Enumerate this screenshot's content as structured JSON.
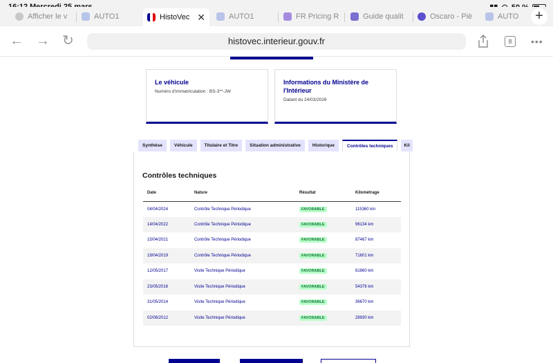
{
  "status": {
    "time": "16:12",
    "date": "Mercredi 25 mars",
    "battery": "50 %"
  },
  "browser_tabs": [
    {
      "label": "Afficher le v",
      "favicon_color": "#b0b0b0"
    },
    {
      "label": "AUTO1",
      "favicon_color": "#b0b0b0"
    },
    {
      "label": "HistoVec",
      "favicon_color": "#000091",
      "active": true
    },
    {
      "label": "AUTO1",
      "favicon_color": "#b0b0b0"
    },
    {
      "label": "FR Pricing R",
      "favicon_color": "#a58be0"
    },
    {
      "label": "Guide qualit",
      "favicon_color": "#7a6fd1"
    },
    {
      "label": "Oscaro - Piè",
      "favicon_color": "#5a4fcf"
    },
    {
      "label": "AUTO",
      "favicon_color": "#b0b0b0"
    }
  ],
  "toolbar": {
    "url": "histovec.interieur.gouv.fr",
    "tabs_count": "8"
  },
  "cards": {
    "vehicle": {
      "title": "Le véhicule",
      "text": "Numéro d'immatriculation : BS-3**-JW"
    },
    "ministry": {
      "title": "Informations du Ministère de l'Intérieur",
      "text": "Datant du 24/03/2026"
    }
  },
  "detail_tabs": [
    "Synthèse",
    "Véhicule",
    "Titulaire et Titre",
    "Situation administrative",
    "Historique",
    "Contrôles techniques",
    "Kil"
  ],
  "active_detail_tab": 5,
  "section": {
    "title": "Contrôles techniques",
    "headers": [
      "Date",
      "Nature",
      "Résultat",
      "Kilométrage"
    ],
    "rows": [
      {
        "date": "04/04/2024",
        "nature": "Contrôle Technique Périodique",
        "result": "FAVORABLE",
        "km": "115360 km"
      },
      {
        "date": "14/04/2022",
        "nature": "Contrôle Technique Périodique",
        "result": "FAVORABLE",
        "km": "96134 km"
      },
      {
        "date": "15/04/2021",
        "nature": "Contrôle Technique Périodique",
        "result": "FAVORABLE",
        "km": "87467 km"
      },
      {
        "date": "19/04/2019",
        "nature": "Contrôle Technique Périodique",
        "result": "FAVORABLE",
        "km": "71601 km"
      },
      {
        "date": "12/05/2017",
        "nature": "Visite Technique Périodique",
        "result": "FAVORABLE",
        "km": "61860 km"
      },
      {
        "date": "23/05/2016",
        "nature": "Visite Technique Périodique",
        "result": "FAVORABLE",
        "km": "54376 km"
      },
      {
        "date": "31/05/2014",
        "nature": "Visite Technique Périodique",
        "result": "FAVORABLE",
        "km": "36670 km"
      },
      {
        "date": "02/06/2012",
        "nature": "Visite Technique Périodique",
        "result": "FAVORABLE",
        "km": "28930 km"
      }
    ]
  },
  "colors": {
    "primary": "#000091",
    "badge_bg": "#b8fec9",
    "badge_text": "#18753c",
    "tab_bg": "#e3e3fd"
  }
}
